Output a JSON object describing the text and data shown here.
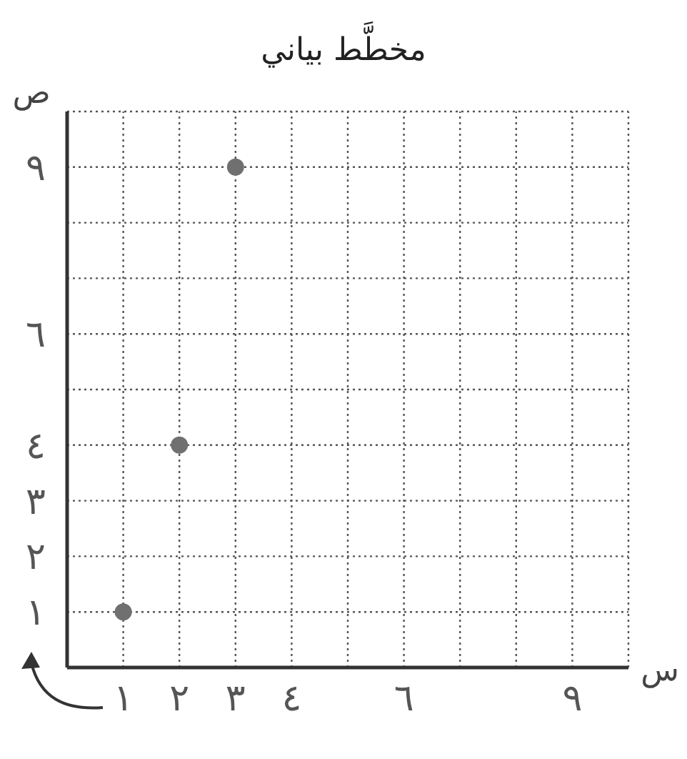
{
  "chart_data": {
    "type": "scatter",
    "title": "مخطَّط بياني",
    "xlabel": "س",
    "ylabel": "ص",
    "x": [
      1,
      2,
      3
    ],
    "series": [
      {
        "color": "#707070",
        "values": [
          1,
          4,
          9
        ]
      }
    ],
    "xlim": [
      0,
      10
    ],
    "ylim": [
      0,
      10
    ],
    "xticks": [
      {
        "value": 1,
        "label": "١"
      },
      {
        "value": 2,
        "label": "٢"
      },
      {
        "value": 3,
        "label": "٣"
      },
      {
        "value": 4,
        "label": "٤"
      },
      {
        "value": 5,
        "label": null
      },
      {
        "value": 6,
        "label": "٦"
      },
      {
        "value": 7,
        "label": null
      },
      {
        "value": 8,
        "label": null
      },
      {
        "value": 9,
        "label": "٩"
      },
      {
        "value": 10,
        "label": null
      }
    ],
    "yticks": [
      {
        "value": 1,
        "label": "١"
      },
      {
        "value": 2,
        "label": "٢"
      },
      {
        "value": 3,
        "label": "٣"
      },
      {
        "value": 4,
        "label": "٤"
      },
      {
        "value": 5,
        "label": null
      },
      {
        "value": 6,
        "label": "٦"
      },
      {
        "value": 7,
        "label": null
      },
      {
        "value": 8,
        "label": null
      },
      {
        "value": 9,
        "label": "٩"
      },
      {
        "value": 10,
        "label": null
      }
    ],
    "grid": true,
    "marker": "circle"
  }
}
